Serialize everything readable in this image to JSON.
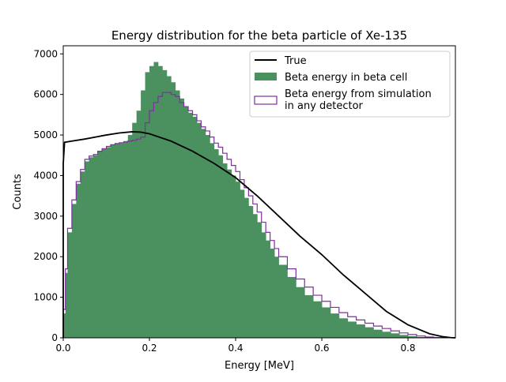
{
  "chart_data": {
    "type": "histogram",
    "title": "Energy distribution for the beta particle of Xe-135",
    "xlabel": "Energy [MeV]",
    "ylabel": "Counts",
    "xlim": [
      0.0,
      0.91
    ],
    "ylim": [
      0,
      7200
    ],
    "xticks": [
      0.0,
      0.2,
      0.4,
      0.6,
      0.8
    ],
    "xtick_labels": [
      "0.0",
      "0.2",
      "0.4",
      "0.6",
      "0.8"
    ],
    "yticks": [
      0,
      1000,
      2000,
      3000,
      4000,
      5000,
      6000,
      7000
    ],
    "ytick_labels": [
      "0",
      "1000",
      "2000",
      "3000",
      "4000",
      "5000",
      "6000",
      "7000"
    ],
    "grid": false,
    "legend_position": "top-right",
    "series": [
      {
        "name": "True",
        "kind": "line",
        "color": "#000000",
        "x": [
          0.0,
          0.0,
          0.003,
          0.02,
          0.05,
          0.08,
          0.1,
          0.13,
          0.16,
          0.18,
          0.2,
          0.25,
          0.3,
          0.35,
          0.4,
          0.45,
          0.5,
          0.55,
          0.6,
          0.65,
          0.7,
          0.75,
          0.8,
          0.85,
          0.88,
          0.9,
          0.91
        ],
        "y": [
          0,
          4300,
          4820,
          4850,
          4900,
          4960,
          5000,
          5050,
          5080,
          5070,
          5030,
          4850,
          4600,
          4300,
          3950,
          3500,
          3000,
          2500,
          2050,
          1550,
          1100,
          650,
          320,
          100,
          30,
          5,
          0
        ]
      },
      {
        "name": "Beta energy in beta cell",
        "kind": "filled-histogram",
        "color": "#4a915f",
        "x": [
          0.0,
          0.005,
          0.01,
          0.02,
          0.03,
          0.04,
          0.05,
          0.06,
          0.07,
          0.08,
          0.09,
          0.1,
          0.11,
          0.12,
          0.13,
          0.14,
          0.15,
          0.16,
          0.17,
          0.18,
          0.19,
          0.2,
          0.21,
          0.22,
          0.23,
          0.24,
          0.25,
          0.26,
          0.27,
          0.28,
          0.29,
          0.3,
          0.31,
          0.32,
          0.33,
          0.34,
          0.35,
          0.36,
          0.37,
          0.38,
          0.39,
          0.4,
          0.41,
          0.42,
          0.43,
          0.44,
          0.45,
          0.46,
          0.47,
          0.48,
          0.49,
          0.5,
          0.52,
          0.54,
          0.56,
          0.58,
          0.6,
          0.62,
          0.64,
          0.66,
          0.68,
          0.7,
          0.72,
          0.74,
          0.76,
          0.78,
          0.8,
          0.82,
          0.84,
          0.86,
          0.88,
          0.9
        ],
        "y": [
          600,
          1600,
          2600,
          3300,
          3800,
          4100,
          4350,
          4450,
          4500,
          4600,
          4650,
          4700,
          4750,
          4780,
          4800,
          4850,
          5000,
          5300,
          5600,
          6100,
          6550,
          6700,
          6800,
          6700,
          6600,
          6450,
          6300,
          6100,
          5900,
          5700,
          5550,
          5450,
          5300,
          5150,
          5000,
          4800,
          4650,
          4500,
          4300,
          4150,
          4000,
          3850,
          3650,
          3450,
          3250,
          3050,
          2850,
          2600,
          2400,
          2200,
          2000,
          1800,
          1500,
          1250,
          1050,
          900,
          750,
          600,
          480,
          400,
          330,
          260,
          200,
          150,
          110,
          70,
          40,
          20,
          10,
          5,
          2,
          0
        ]
      },
      {
        "name": "Beta energy from simulation\nin any detector",
        "kind": "step-histogram",
        "color": "#7e2fa0",
        "x": [
          0.0,
          0.005,
          0.01,
          0.02,
          0.03,
          0.04,
          0.05,
          0.06,
          0.07,
          0.08,
          0.09,
          0.1,
          0.11,
          0.12,
          0.13,
          0.14,
          0.15,
          0.16,
          0.17,
          0.18,
          0.19,
          0.2,
          0.21,
          0.22,
          0.23,
          0.24,
          0.25,
          0.26,
          0.27,
          0.28,
          0.29,
          0.3,
          0.31,
          0.32,
          0.33,
          0.34,
          0.35,
          0.36,
          0.37,
          0.38,
          0.39,
          0.4,
          0.41,
          0.42,
          0.43,
          0.44,
          0.45,
          0.46,
          0.47,
          0.48,
          0.49,
          0.5,
          0.52,
          0.54,
          0.56,
          0.58,
          0.6,
          0.62,
          0.64,
          0.66,
          0.68,
          0.7,
          0.72,
          0.74,
          0.76,
          0.78,
          0.8,
          0.82,
          0.84,
          0.86,
          0.88,
          0.9
        ],
        "y": [
          700,
          1700,
          2700,
          3400,
          3850,
          4150,
          4400,
          4480,
          4520,
          4600,
          4660,
          4720,
          4760,
          4790,
          4810,
          4830,
          4850,
          4870,
          4900,
          4950,
          5300,
          5600,
          5800,
          5950,
          6050,
          6050,
          6000,
          5950,
          5800,
          5700,
          5600,
          5500,
          5350,
          5200,
          5100,
          4950,
          4800,
          4700,
          4550,
          4400,
          4250,
          4100,
          3900,
          3700,
          3500,
          3300,
          3100,
          2850,
          2600,
          2400,
          2200,
          2000,
          1700,
          1450,
          1250,
          1050,
          900,
          750,
          620,
          520,
          440,
          360,
          290,
          230,
          170,
          120,
          80,
          45,
          20,
          8,
          2,
          0
        ]
      }
    ]
  }
}
